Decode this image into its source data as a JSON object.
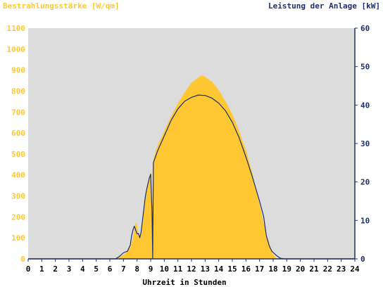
{
  "chart_data": {
    "type": "area",
    "title_left": "Bestrahlungsstärke [W/qm]",
    "title_right": "Leistung der Anlage [kW]",
    "xlabel": "Uhrzeit in Stunden",
    "x_ticks": [
      "0",
      "1",
      "2",
      "3",
      "4",
      "5",
      "6",
      "7",
      "8",
      "9",
      "10",
      "11",
      "12",
      "13",
      "14",
      "15",
      "16",
      "17",
      "18",
      "19",
      "20",
      "21",
      "22",
      "23",
      "24"
    ],
    "xlim": [
      0,
      24
    ],
    "y_left": {
      "label": "Bestrahlungsstärke [W/qm]",
      "lim": [
        0,
        1100
      ],
      "ticks": [
        "0",
        "100",
        "200",
        "300",
        "400",
        "500",
        "600",
        "700",
        "800",
        "900",
        "1000",
        "1100"
      ]
    },
    "y_right": {
      "label": "Leistung der Anlage [kW]",
      "lim": [
        0,
        60
      ],
      "ticks": [
        "0",
        "10",
        "20",
        "30",
        "40",
        "50",
        "60"
      ]
    },
    "grid": false,
    "series": [
      {
        "name": "Bestrahlungsstärke [W/qm]",
        "axis": "left",
        "style": "area",
        "color": "#FFC832",
        "points": [
          [
            0,
            0
          ],
          [
            6.3,
            0
          ],
          [
            6.6,
            5
          ],
          [
            6.9,
            15
          ],
          [
            7.2,
            30
          ],
          [
            7.5,
            55
          ],
          [
            7.7,
            100
          ],
          [
            7.8,
            140
          ],
          [
            7.9,
            175
          ],
          [
            8.0,
            160
          ],
          [
            8.1,
            110
          ],
          [
            8.2,
            100
          ],
          [
            8.3,
            130
          ],
          [
            8.4,
            190
          ],
          [
            8.5,
            250
          ],
          [
            8.6,
            300
          ],
          [
            8.7,
            340
          ],
          [
            8.8,
            370
          ],
          [
            8.9,
            390
          ],
          [
            9.0,
            400
          ],
          [
            9.05,
            420
          ],
          [
            9.1,
            260
          ],
          [
            9.15,
            260
          ],
          [
            9.2,
            475
          ],
          [
            9.5,
            540
          ],
          [
            10.0,
            610
          ],
          [
            10.5,
            680
          ],
          [
            11.0,
            740
          ],
          [
            11.5,
            795
          ],
          [
            12.0,
            840
          ],
          [
            12.5,
            865
          ],
          [
            12.75,
            875
          ],
          [
            13.0,
            868
          ],
          [
            13.5,
            845
          ],
          [
            14.0,
            805
          ],
          [
            14.5,
            750
          ],
          [
            15.0,
            690
          ],
          [
            15.5,
            610
          ],
          [
            16.0,
            520
          ],
          [
            16.5,
            400
          ],
          [
            17.0,
            260
          ],
          [
            17.3,
            170
          ],
          [
            17.5,
            115
          ],
          [
            17.7,
            80
          ],
          [
            17.85,
            45
          ],
          [
            18.0,
            20
          ],
          [
            18.2,
            5
          ],
          [
            18.5,
            0
          ],
          [
            24,
            0
          ]
        ]
      },
      {
        "name": "Leistung der Anlage [kW]",
        "axis": "right",
        "style": "line",
        "color": "#1C2F6E",
        "points": [
          [
            0,
            0
          ],
          [
            6.4,
            0
          ],
          [
            6.7,
            0.6
          ],
          [
            7.0,
            1.6
          ],
          [
            7.3,
            2.0
          ],
          [
            7.5,
            3.6
          ],
          [
            7.6,
            6.0
          ],
          [
            7.7,
            7.5
          ],
          [
            7.8,
            8.5
          ],
          [
            7.9,
            7.5
          ],
          [
            8.0,
            6.5
          ],
          [
            8.1,
            6.6
          ],
          [
            8.2,
            5.5
          ],
          [
            8.3,
            7.0
          ],
          [
            8.4,
            10.0
          ],
          [
            8.5,
            13.0
          ],
          [
            8.6,
            16.0
          ],
          [
            8.7,
            18.0
          ],
          [
            8.8,
            19.5
          ],
          [
            8.9,
            21.0
          ],
          [
            9.0,
            22.0
          ],
          [
            9.1,
            12.0
          ],
          [
            9.15,
            0.2
          ],
          [
            9.2,
            25.0
          ],
          [
            9.5,
            28.0
          ],
          [
            10.0,
            32.0
          ],
          [
            10.5,
            36.0
          ],
          [
            11.0,
            39.0
          ],
          [
            11.5,
            41.0
          ],
          [
            12.0,
            42.0
          ],
          [
            12.5,
            42.6
          ],
          [
            13.0,
            42.5
          ],
          [
            13.5,
            41.8
          ],
          [
            14.0,
            40.5
          ],
          [
            14.5,
            38.5
          ],
          [
            15.0,
            35.5
          ],
          [
            15.5,
            31.5
          ],
          [
            16.0,
            26.5
          ],
          [
            16.5,
            21.0
          ],
          [
            17.0,
            15.0
          ],
          [
            17.3,
            11.0
          ],
          [
            17.5,
            6.0
          ],
          [
            17.7,
            3.5
          ],
          [
            17.9,
            2.0
          ],
          [
            18.2,
            1.0
          ],
          [
            18.5,
            0.2
          ],
          [
            18.8,
            0
          ],
          [
            24,
            0
          ]
        ]
      }
    ],
    "colors": {
      "plot_background": "#DCDCDC",
      "left_axis_text": "#FFC832",
      "right_axis_text": "#1C2F6E",
      "axis_line": "#1C2F6E",
      "x_tick_text": "#000000"
    }
  }
}
